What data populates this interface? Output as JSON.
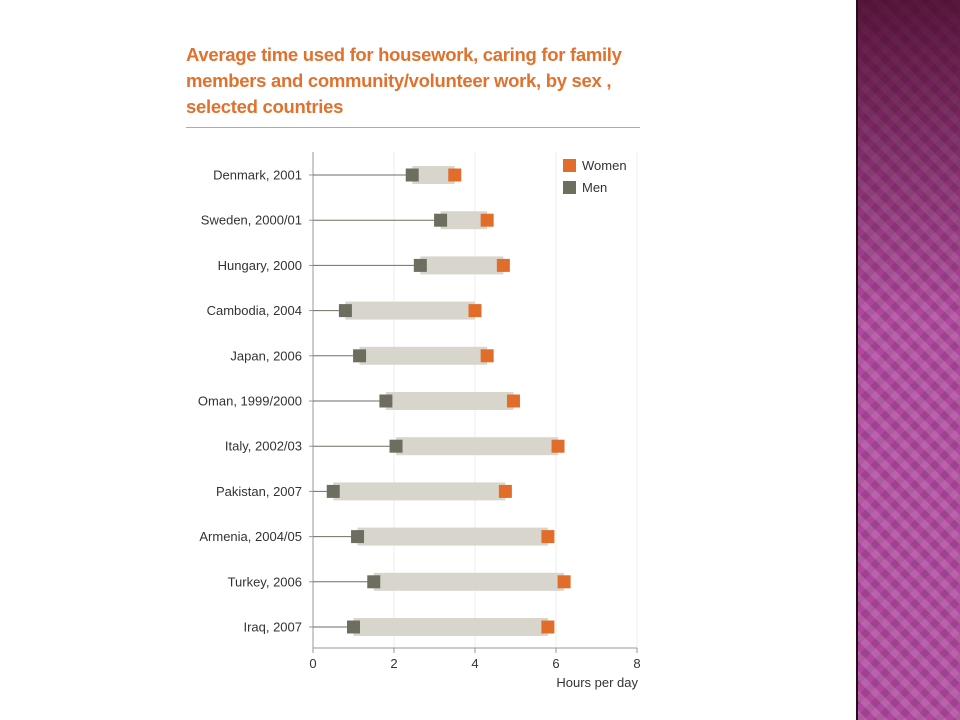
{
  "chart_data": {
    "type": "dot-range",
    "title": "Average time used for housework, caring for family members and community/volunteer work, by sex , selected countries",
    "xlabel": "Hours per day",
    "xlim": [
      0,
      8
    ],
    "xticks": [
      "0",
      "2",
      "4",
      "6",
      "8"
    ],
    "grid": true,
    "legend_position": "top-right",
    "categories": [
      "Denmark, 2001",
      "Sweden, 2000/01",
      "Hungary, 2000",
      "Cambodia, 2004",
      "Japan, 2006",
      "Oman, 1999/2000",
      "Italy, 2002/03",
      "Pakistan, 2007",
      "Armenia, 2004/05",
      "Turkey, 2006",
      "Iraq, 2007"
    ],
    "series": [
      {
        "name": "Women",
        "color": "#e26d2b",
        "values": [
          3.5,
          4.3,
          4.7,
          4.0,
          4.3,
          4.95,
          6.05,
          4.75,
          5.8,
          6.2,
          5.8
        ]
      },
      {
        "name": "Men",
        "color": "#6e6e60",
        "values": [
          2.45,
          3.15,
          2.65,
          0.8,
          1.15,
          1.8,
          2.05,
          0.5,
          1.1,
          1.5,
          1.0
        ]
      }
    ],
    "range_bar_color": "#d8d6cc"
  },
  "colors": {
    "accent": "#e0712e",
    "background_panel": "#b0489f"
  }
}
